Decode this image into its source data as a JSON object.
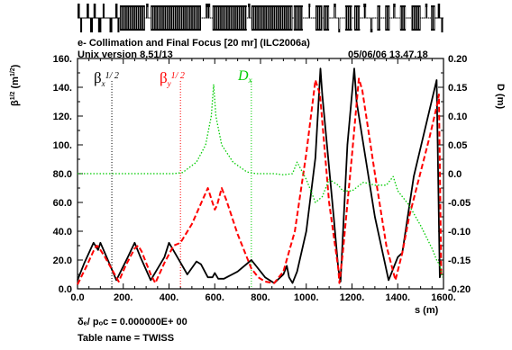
{
  "header": {
    "title": "e- Collimation and Final Focus [20 mr] (ILC2006a)",
    "version": "Unix version 8.51/13",
    "timestamp": "05/06/06  13.47.18"
  },
  "footer": {
    "delta_label": "δₑ/ pₒc  =   0.000000E+ 00",
    "table_name": "Table name = TWISS"
  },
  "colors": {
    "beta_x": "#000000",
    "beta_y": "#ff0000",
    "dx": "#00cc00",
    "lattice": "#000000"
  },
  "chart_data": {
    "type": "line",
    "title": "e- Collimation and Final Focus [20 mr] (ILC2006a)",
    "xlabel": "s (m)",
    "ylabel_left": "β^(1/2) (m^(1/2))",
    "ylabel_right": "D (m)",
    "xlim": [
      0,
      1600
    ],
    "ylim_left": [
      0,
      160
    ],
    "ylim_right": [
      -0.2,
      0.2
    ],
    "x_ticks": [
      "0.0",
      "200.",
      "400.",
      "600.",
      "800.",
      "1000.",
      "1200.",
      "1400.",
      "1600."
    ],
    "y_left_ticks": [
      "0.0",
      "20.0",
      "40.0",
      "60.0",
      "80.0",
      "100.",
      "120.",
      "140.",
      "160."
    ],
    "y_right_ticks": [
      "-0.20",
      "-0.15",
      "-0.10",
      "-0.05",
      "0.0",
      "0.05",
      "0.10",
      "0.15",
      "0.20"
    ],
    "grid": false,
    "legend_position": "top-left",
    "legend": [
      "βx^(1/2)",
      "βy^(1/2)",
      "Dx"
    ],
    "series": [
      {
        "name": "βx^(1/2)",
        "axis": "left",
        "color": "#000000",
        "style": "solid",
        "points": [
          [
            0,
            6
          ],
          [
            30,
            18
          ],
          [
            70,
            32
          ],
          [
            90,
            27
          ],
          [
            100,
            32
          ],
          [
            130,
            21
          ],
          [
            170,
            6
          ],
          [
            220,
            22
          ],
          [
            250,
            32
          ],
          [
            275,
            22
          ],
          [
            320,
            6
          ],
          [
            380,
            22
          ],
          [
            400,
            32
          ],
          [
            440,
            21
          ],
          [
            480,
            10
          ],
          [
            520,
            19
          ],
          [
            540,
            17
          ],
          [
            570,
            8
          ],
          [
            590,
            8
          ],
          [
            600,
            11
          ],
          [
            615,
            7
          ],
          [
            640,
            7
          ],
          [
            700,
            12
          ],
          [
            760,
            20
          ],
          [
            820,
            8
          ],
          [
            860,
            4
          ],
          [
            900,
            10
          ],
          [
            915,
            16
          ],
          [
            925,
            8
          ],
          [
            940,
            4
          ],
          [
            960,
            12
          ],
          [
            1000,
            40
          ],
          [
            1040,
            91
          ],
          [
            1062,
            153
          ],
          [
            1070,
            135
          ],
          [
            1120,
            50
          ],
          [
            1140,
            14
          ],
          [
            1150,
            5
          ],
          [
            1180,
            100
          ],
          [
            1210,
            153
          ],
          [
            1220,
            130
          ],
          [
            1300,
            50
          ],
          [
            1360,
            6
          ],
          [
            1400,
            22
          ],
          [
            1420,
            25
          ],
          [
            1470,
            78
          ],
          [
            1570,
            145
          ],
          [
            1584,
            8
          ],
          [
            1590,
            14
          ]
        ]
      },
      {
        "name": "βy^(1/2)",
        "axis": "left",
        "color": "#ff0000",
        "style": "dashed",
        "points": [
          [
            0,
            3
          ],
          [
            40,
            16
          ],
          [
            75,
            28
          ],
          [
            85,
            30
          ],
          [
            100,
            27
          ],
          [
            120,
            22
          ],
          [
            180,
            5
          ],
          [
            210,
            16
          ],
          [
            250,
            28
          ],
          [
            265,
            30
          ],
          [
            280,
            26
          ],
          [
            320,
            10
          ],
          [
            340,
            4
          ],
          [
            380,
            18
          ],
          [
            420,
            30
          ],
          [
            450,
            32
          ],
          [
            500,
            45
          ],
          [
            550,
            63
          ],
          [
            570,
            70
          ],
          [
            590,
            60
          ],
          [
            600,
            55
          ],
          [
            610,
            58
          ],
          [
            630,
            70
          ],
          [
            650,
            62
          ],
          [
            700,
            38
          ],
          [
            760,
            14
          ],
          [
            790,
            8
          ],
          [
            820,
            5
          ],
          [
            860,
            4
          ],
          [
            900,
            12
          ],
          [
            950,
            40
          ],
          [
            1000,
            94
          ],
          [
            1040,
            145
          ],
          [
            1060,
            135
          ],
          [
            1100,
            60
          ],
          [
            1140,
            14
          ],
          [
            1145,
            4
          ],
          [
            1160,
            25
          ],
          [
            1200,
            93
          ],
          [
            1230,
            146
          ],
          [
            1245,
            138
          ],
          [
            1300,
            80
          ],
          [
            1350,
            30
          ],
          [
            1390,
            6
          ],
          [
            1420,
            25
          ],
          [
            1450,
            50
          ],
          [
            1540,
            106
          ],
          [
            1575,
            130
          ],
          [
            1580,
            135
          ],
          [
            1590,
            10
          ]
        ]
      },
      {
        "name": "Dx",
        "axis": "right",
        "color": "#00cc00",
        "style": "dotted",
        "points": [
          [
            0,
            0.0
          ],
          [
            300,
            0.0
          ],
          [
            420,
            0.0
          ],
          [
            460,
            0.002
          ],
          [
            520,
            0.02
          ],
          [
            560,
            0.05
          ],
          [
            585,
            0.1
          ],
          [
            595,
            0.155
          ],
          [
            605,
            0.1
          ],
          [
            630,
            0.05
          ],
          [
            680,
            0.02
          ],
          [
            740,
            0.003
          ],
          [
            780,
            0.0
          ],
          [
            860,
            0.0
          ],
          [
            900,
            -0.002
          ],
          [
            940,
            0.0
          ],
          [
            960,
            0.02
          ],
          [
            1000,
            -0.01
          ],
          [
            1040,
            -0.05
          ],
          [
            1070,
            -0.04
          ],
          [
            1100,
            -0.01
          ],
          [
            1140,
            -0.02
          ],
          [
            1160,
            -0.03
          ],
          [
            1200,
            -0.03
          ],
          [
            1250,
            -0.015
          ],
          [
            1300,
            -0.02
          ],
          [
            1350,
            -0.02
          ],
          [
            1380,
            -0.005
          ],
          [
            1400,
            -0.03
          ],
          [
            1450,
            -0.055
          ],
          [
            1500,
            -0.09
          ],
          [
            1550,
            -0.13
          ],
          [
            1570,
            -0.15
          ],
          [
            1585,
            -0.16
          ],
          [
            1595,
            -0.18
          ]
        ]
      }
    ],
    "markers": [
      150,
      450,
      760
    ]
  }
}
